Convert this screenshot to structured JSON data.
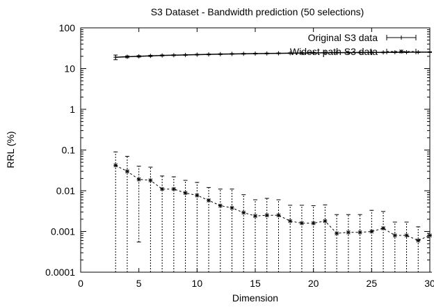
{
  "chart_data": {
    "type": "line",
    "title": "S3 Dataset - Bandwidth prediction (50 selections)",
    "xlabel": "Dimension",
    "ylabel": "RRL (%)",
    "xlim": [
      0,
      30
    ],
    "ylim": [
      0.0001,
      100
    ],
    "yscale": "log",
    "x_ticks": [
      0,
      5,
      10,
      15,
      20,
      25,
      30
    ],
    "y_ticks": [
      {
        "value": 0.0001,
        "label": "0.0001"
      },
      {
        "value": 0.001,
        "label": "0.001"
      },
      {
        "value": 0.01,
        "label": "0.01"
      },
      {
        "value": 0.1,
        "label": "0.1"
      },
      {
        "value": 1,
        "label": "1"
      },
      {
        "value": 10,
        "label": "10"
      },
      {
        "value": 100,
        "label": "100"
      }
    ],
    "legend_position": "top-right",
    "series": [
      {
        "name": "Original S3 data",
        "style": "solid",
        "marker": "plus",
        "color": "#000000",
        "x": [
          3,
          4,
          5,
          6,
          7,
          8,
          9,
          10,
          11,
          12,
          13,
          14,
          15,
          16,
          17,
          18,
          19,
          20,
          21,
          22,
          23,
          24,
          25,
          26,
          27,
          28,
          29,
          30
        ],
        "y": [
          19,
          19.5,
          20,
          20.5,
          21,
          21.3,
          21.6,
          22,
          22.3,
          22.6,
          22.9,
          23.1,
          23.3,
          23.5,
          23.7,
          23.9,
          24.1,
          24.3,
          24.5,
          24.6,
          24.7,
          24.8,
          24.9,
          25,
          25.1,
          25.2,
          25.3,
          25.4
        ],
        "y_err_low": [
          16.5,
          18.5,
          19.2,
          19.8,
          20.4,
          20.8,
          21.1,
          21.5,
          21.8,
          22.1,
          22.4,
          22.6,
          22.8,
          23,
          23.2,
          23.4,
          23.6,
          23.8,
          24,
          24.1,
          24.2,
          24.3,
          24.4,
          24.5,
          24.6,
          24.7,
          24.8,
          24.9
        ],
        "y_err_high": [
          21.5,
          20.5,
          20.8,
          21.2,
          21.6,
          21.8,
          22.1,
          22.5,
          22.8,
          23.1,
          23.4,
          23.6,
          23.8,
          24,
          24.2,
          24.4,
          24.6,
          24.8,
          25,
          25.1,
          25.2,
          25.3,
          25.4,
          25.5,
          25.6,
          25.7,
          25.8,
          25.9
        ]
      },
      {
        "name": "Widest path S3 data",
        "style": "dashed",
        "marker": "star",
        "color": "#000000",
        "x": [
          3,
          4,
          5,
          6,
          7,
          8,
          9,
          10,
          11,
          12,
          13,
          14,
          15,
          16,
          17,
          18,
          19,
          20,
          21,
          22,
          23,
          24,
          25,
          26,
          27,
          28,
          29,
          30
        ],
        "y": [
          0.042,
          0.03,
          0.019,
          0.018,
          0.011,
          0.011,
          0.0088,
          0.0077,
          0.0058,
          0.0043,
          0.0038,
          0.0029,
          0.0024,
          0.0025,
          0.0025,
          0.0018,
          0.0016,
          0.0016,
          0.0018,
          0.0009,
          0.00095,
          0.00095,
          0.001,
          0.0012,
          0.0008,
          0.0008,
          0.0006,
          0.0008
        ],
        "y_err_low": [
          0.0001,
          0.0001,
          0.00055,
          0.0001,
          0.0001,
          0.0001,
          0.0001,
          0.0001,
          0.0001,
          0.0001,
          0.0001,
          0.0001,
          0.0001,
          0.0001,
          0.0001,
          0.0001,
          0.0001,
          0.0001,
          0.0001,
          0.0001,
          0.0001,
          0.0001,
          0.0001,
          0.0001,
          0.0001,
          0.0001,
          0.0001,
          0.0001
        ],
        "y_err_high": [
          0.09,
          0.07,
          0.04,
          0.038,
          0.023,
          0.022,
          0.018,
          0.016,
          0.012,
          0.011,
          0.011,
          0.008,
          0.006,
          0.0065,
          0.006,
          0.0044,
          0.0044,
          0.0043,
          0.0045,
          0.0026,
          0.0026,
          0.0026,
          0.0033,
          0.0031,
          0.0017,
          0.0017,
          0.0013,
          0.0008
        ]
      }
    ]
  }
}
